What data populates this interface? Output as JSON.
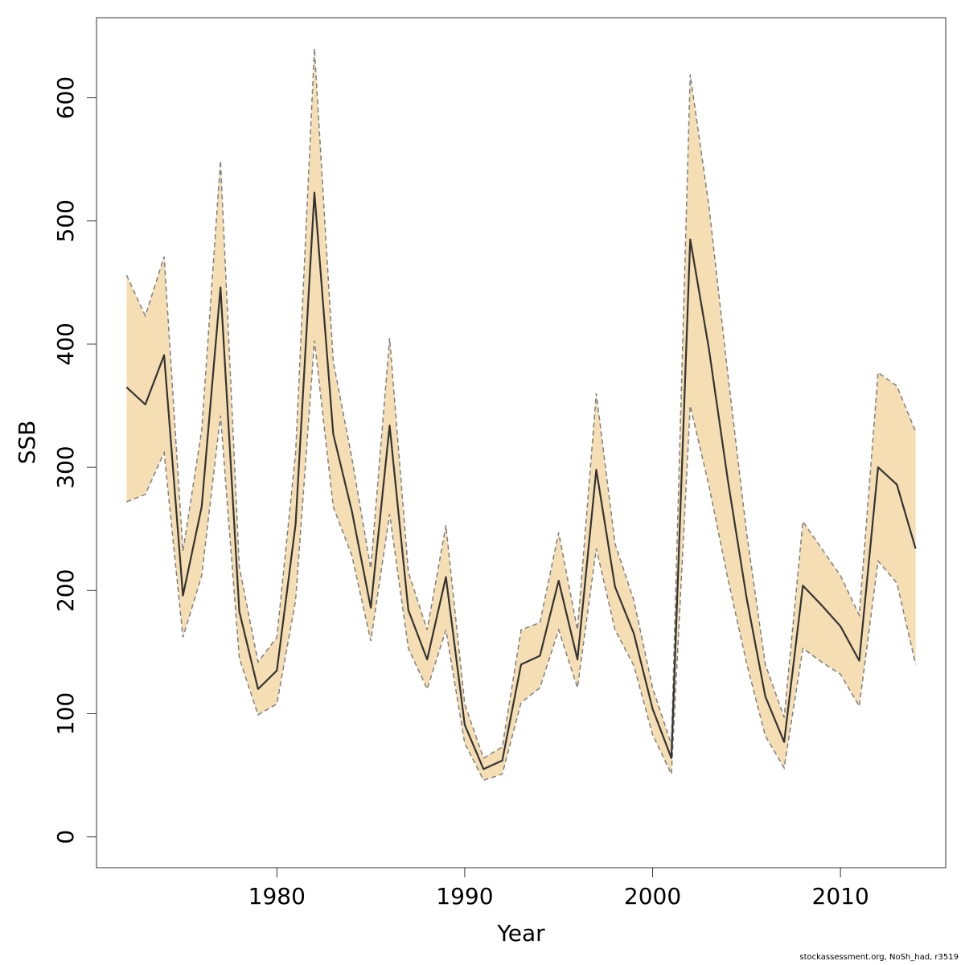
{
  "chart_data": {
    "type": "area",
    "xlabel": "Year",
    "ylabel": "SSB",
    "xlim": [
      1970.4,
      2015.6
    ],
    "ylim": [
      -25,
      665
    ],
    "xticks": [
      1980,
      1990,
      2000,
      2010
    ],
    "yticks": [
      0,
      100,
      200,
      300,
      400,
      500,
      600
    ],
    "grid": false,
    "band_color": "#f5deb3",
    "band_border_color": "#7f7f7f",
    "line_color": "#333333",
    "series": [
      {
        "role": "estimate",
        "x": [
          1972,
          1973,
          1974,
          1975,
          1976,
          1977,
          1978,
          1979,
          1980,
          1981,
          1982,
          1983,
          1984,
          1985,
          1986,
          1987,
          1988,
          1989,
          1990,
          1991,
          1992,
          1993,
          1994,
          1995,
          1996,
          1997,
          1998,
          1999,
          2000,
          2001,
          2002,
          2003,
          2004,
          2005,
          2006,
          2007,
          2008,
          2009,
          2010,
          2011,
          2012,
          2013,
          2014
        ],
        "y": [
          365,
          351,
          391,
          196,
          268,
          446,
          183,
          120,
          135,
          254,
          523,
          327,
          264,
          186,
          334,
          184,
          144,
          211,
          91,
          55,
          62,
          140,
          147,
          208,
          144,
          298,
          203,
          165,
          104,
          64,
          485,
          396,
          290,
          194,
          114,
          77,
          204,
          188,
          171,
          143,
          300,
          286,
          234
        ]
      },
      {
        "role": "lower",
        "x": [
          1972,
          1973,
          1974,
          1975,
          1976,
          1977,
          1978,
          1979,
          1980,
          1981,
          1982,
          1983,
          1984,
          1985,
          1986,
          1987,
          1988,
          1989,
          1990,
          1991,
          1992,
          1993,
          1994,
          1995,
          1996,
          1997,
          1998,
          1999,
          2000,
          2001,
          2002,
          2003,
          2004,
          2005,
          2006,
          2007,
          2008,
          2009,
          2010,
          2011,
          2012,
          2013,
          2014
        ],
        "y": [
          272,
          278,
          312,
          162,
          212,
          342,
          145,
          99,
          108,
          192,
          403,
          268,
          228,
          159,
          262,
          153,
          120,
          168,
          76,
          46,
          51,
          109,
          121,
          168,
          121,
          234,
          168,
          139,
          83,
          51,
          350,
          285,
          210,
          141,
          82,
          56,
          153,
          142,
          132,
          106,
          224,
          206,
          140
        ]
      },
      {
        "role": "upper",
        "x": [
          1972,
          1973,
          1974,
          1975,
          1976,
          1977,
          1978,
          1979,
          1980,
          1981,
          1982,
          1983,
          1984,
          1985,
          1986,
          1987,
          1988,
          1989,
          1990,
          1991,
          1992,
          1993,
          1994,
          1995,
          1996,
          1997,
          1998,
          1999,
          2000,
          2001,
          2002,
          2003,
          2004,
          2005,
          2006,
          2007,
          2008,
          2009,
          2010,
          2011,
          2012,
          2013,
          2014
        ],
        "y": [
          456,
          423,
          471,
          232,
          330,
          549,
          219,
          142,
          162,
          312,
          640,
          386,
          307,
          218,
          405,
          215,
          168,
          253,
          108,
          64,
          73,
          168,
          174,
          247,
          168,
          360,
          238,
          192,
          121,
          75,
          619,
          512,
          376,
          247,
          140,
          97,
          256,
          234,
          212,
          180,
          377,
          366,
          329
        ]
      }
    ]
  },
  "footer": {
    "text": "stockassessment.org, NoSh_had, r3519"
  }
}
